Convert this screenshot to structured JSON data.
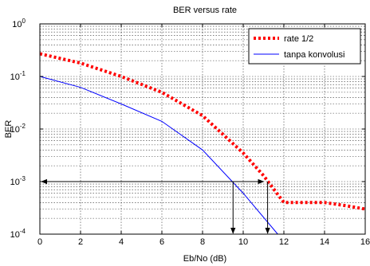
{
  "chart_data": {
    "type": "line",
    "title": "BER versus rate",
    "xlabel": "Eb/No (dB)",
    "ylabel": "BER",
    "xlim": [
      0,
      16
    ],
    "ylim": [
      0.0001,
      1
    ],
    "y_scale": "log",
    "grid": true,
    "legend_position": "top-right",
    "x_ticks": [
      "0",
      "2",
      "4",
      "6",
      "8",
      "10",
      "12",
      "14",
      "16"
    ],
    "y_ticks": [
      {
        "base": "10",
        "exp": "0"
      },
      {
        "base": "10",
        "exp": "-1"
      },
      {
        "base": "10",
        "exp": "-2"
      },
      {
        "base": "10",
        "exp": "-3"
      },
      {
        "base": "10",
        "exp": "-4"
      }
    ],
    "series": [
      {
        "name": "rate 1/2",
        "color": "#ff0000",
        "style": "dotted-thick",
        "x": [
          0,
          2,
          4,
          6,
          8,
          10,
          11,
          12,
          13,
          14,
          15,
          16
        ],
        "y": [
          0.27,
          0.18,
          0.1,
          0.05,
          0.018,
          0.0035,
          0.0013,
          0.0004,
          0.0004,
          0.0004,
          0.00035,
          0.0003
        ]
      },
      {
        "name": "tanpa konvolusi",
        "color": "#0000ff",
        "style": "solid",
        "x": [
          0,
          2,
          4,
          6,
          8,
          10,
          11.7
        ],
        "y": [
          0.1,
          0.062,
          0.03,
          0.014,
          0.004,
          0.0006,
          0.0001
        ]
      }
    ],
    "annotations": {
      "horizontal_arrow": {
        "x_from": 0,
        "x_to": 11,
        "y": 0.001
      },
      "vertical_arrows": [
        {
          "x": 9.5,
          "y_from": 0.001,
          "y_to": 0.0001
        },
        {
          "x": 11.2,
          "y_from": 0.001,
          "y_to": 0.0001
        }
      ]
    }
  }
}
